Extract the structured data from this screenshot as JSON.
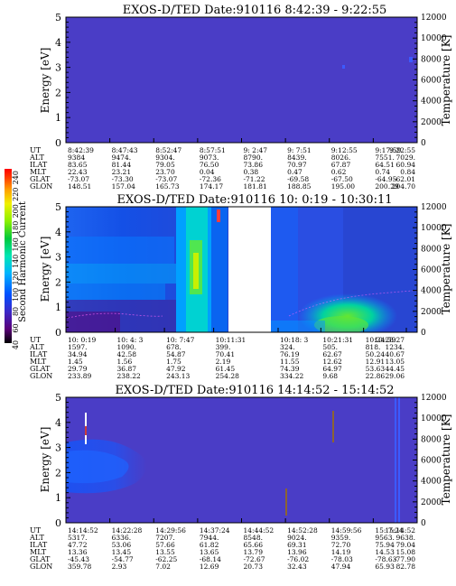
{
  "chart_data": [
    {
      "type": "heatmap",
      "title": "EXOS-D/TED   Date:910116   8:42:39 - 9:22:55",
      "ylabel": "Energy [eV]",
      "y2label": "Temperature [K]",
      "ylim": [
        0,
        5
      ],
      "y2lim": [
        0,
        12000
      ],
      "yticks": [
        "0",
        "1",
        "2",
        "3",
        "4",
        "5"
      ],
      "y2ticks": [
        "0",
        "2000",
        "4000",
        "6000",
        "8000",
        "10000",
        "12000"
      ],
      "background": "#4a3dc6",
      "features": [
        {
          "x": 0.82,
          "y": 3.2,
          "kind": "speck"
        },
        {
          "x": 0.98,
          "y": 3.6,
          "kind": "speck"
        }
      ],
      "ephemeris": {
        "rows": [
          "UT",
          "ALT",
          "ILAT",
          "MLT",
          "GLAT",
          "GLON"
        ],
        "columns": [
          [
            "8:42:39",
            "9384",
            "83.65",
            "22.43",
            "-73.07",
            "148.51"
          ],
          [
            "8:47:43",
            "9474.",
            "81.44",
            "23.21",
            "-73.30",
            "157.04"
          ],
          [
            "8:52:47",
            "9304.",
            "79.05",
            "23.70",
            "-73.07",
            "165.73"
          ],
          [
            "8:57:51",
            "9073.",
            "76.50",
            "0.04",
            "-72.36",
            "174.17"
          ],
          [
            "9: 2:47",
            "8790.",
            "73.86",
            "0.38",
            "-71.22",
            "181.81"
          ],
          [
            "9: 7:51",
            "8439.",
            "70.97",
            "0.47",
            "-69.58",
            "188.85"
          ],
          [
            "9:12:55",
            "8026.",
            "67.87",
            "0.62",
            "-67.50",
            "195.00"
          ],
          [
            "9:17:59",
            "7551.",
            "64.51",
            "0.74",
            "-64.95",
            "200.29"
          ],
          [
            "9:22:55",
            "7029.",
            "60.94",
            "0.84",
            "-62.01",
            "204.70"
          ]
        ]
      }
    },
    {
      "type": "heatmap",
      "title": "EXOS-D/TED   Date:910116   10: 0:19 - 10:30:11",
      "ylabel": "Energy [eV]",
      "y2label": "Temperature [K]",
      "ylim": [
        0,
        5
      ],
      "y2lim": [
        0,
        12000
      ],
      "yticks": [
        "0",
        "1",
        "2",
        "3",
        "4",
        "5"
      ],
      "y2ticks": [
        "0",
        "2000",
        "4000",
        "6000",
        "8000",
        "10000",
        "12000"
      ],
      "colorbar": {
        "label": "Second Harmonic Current",
        "ticks": [
          "40",
          "60",
          "80",
          "100",
          "120",
          "140",
          "160",
          "180",
          "200",
          "220",
          "240"
        ],
        "colors": [
          "#000000",
          "#5a0078",
          "#3c28c8",
          "#0050ff",
          "#00b4ff",
          "#00e6b4",
          "#00c83c",
          "#8cf000",
          "#f0f000",
          "#ffa000",
          "#ff3c00",
          "#ff0000"
        ]
      },
      "data_gap": [
        0.565,
        0.665
      ],
      "ephemeris": {
        "rows": [
          "UT",
          "ALT",
          "ILAT",
          "MLT",
          "GLAT",
          "GLON"
        ],
        "columns": [
          [
            "10: 0:19",
            "1597.",
            "34.94",
            "1.45",
            "29.79",
            "233.89"
          ],
          [
            "10: 4: 3",
            "1090.",
            "42.58",
            "1.56",
            "36.87",
            "238.22"
          ],
          [
            "10: 7:47",
            "678.",
            "54.87",
            "1.75",
            "47.92",
            "243.13"
          ],
          [
            "10:11:31",
            "399.",
            "70.41",
            "2.19",
            "61.45",
            "254.28"
          ],
          [
            "10:18: 3",
            "324.",
            "76.19",
            "11.55",
            "74.39",
            "334.22"
          ],
          [
            "10:21:31",
            "505.",
            "62.67",
            "12.62",
            "64.97",
            "9.68"
          ],
          [
            "10:24:59",
            "818.",
            "50.24",
            "12.91",
            "53.63",
            "22.86"
          ],
          [
            "10:28:27",
            "1234.",
            "40.67",
            "13.05",
            "44.45",
            "29.06"
          ]
        ]
      }
    },
    {
      "type": "heatmap",
      "title": "EXOS-D/TED   Date:910116   14:14:52 - 15:14:52",
      "ylabel": "Energy [eV]",
      "y2label": "Temperature [K]",
      "ylim": [
        0,
        5
      ],
      "y2lim": [
        0,
        12000
      ],
      "yticks": [
        "0",
        "1",
        "2",
        "3",
        "4",
        "5"
      ],
      "y2ticks": [
        "0",
        "2000",
        "4000",
        "6000",
        "8000",
        "10000",
        "12000"
      ],
      "background": "#4a3dc6",
      "ephemeris": {
        "rows": [
          "UT",
          "ALT",
          "ILAT",
          "MLT",
          "GLAT",
          "GLON"
        ],
        "columns": [
          [
            "14:14:52",
            "5317.",
            "47.72",
            "13.36",
            "-45.43",
            "359.78"
          ],
          [
            "14:22:28",
            "6336.",
            "53.06",
            "13.45",
            "-54.77",
            "2.93"
          ],
          [
            "14:29:56",
            "7207.",
            "57.66",
            "13.55",
            "-62.25",
            "7.02"
          ],
          [
            "14:37:24",
            "7944.",
            "61.82",
            "13.65",
            "-68.14",
            "12.69"
          ],
          [
            "14:44:52",
            "8548.",
            "65.66",
            "13.79",
            "-72.67",
            "20.73"
          ],
          [
            "14:52:28",
            "9024.",
            "69.31",
            "13.96",
            "-76.02",
            "32.43"
          ],
          [
            "14:59:56",
            "9359.",
            "72.70",
            "14.19",
            "-78.03",
            "47.94"
          ],
          [
            "15: 7:24",
            "9563.",
            "75.94",
            "14.53",
            "-78.63",
            "65.93"
          ],
          [
            "15:14:52",
            "9638.",
            "79.04",
            "15.08",
            "-77.90",
            "82.78"
          ]
        ]
      }
    }
  ]
}
